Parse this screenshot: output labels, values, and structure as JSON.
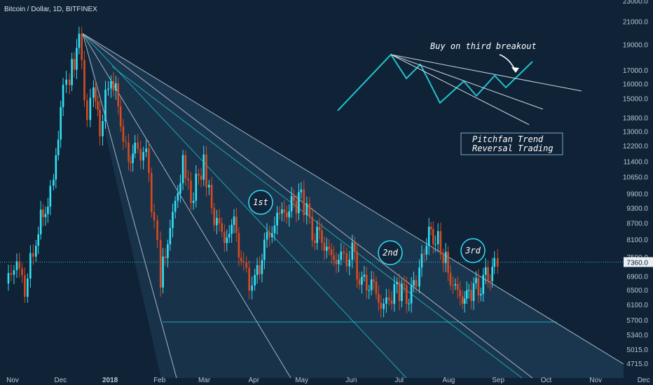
{
  "chart_data": {
    "type": "candlestick",
    "title": "Bitcoin / Dollar, 1D, BITFINEX",
    "price_scale": "log",
    "ylim": [
      4600,
      23000
    ],
    "y_ticks": [
      "23000.0",
      "21000.0",
      "19000.0",
      "17000.0",
      "16000.0",
      "15000.0",
      "13800.0",
      "13000.0",
      "12200.0",
      "11400.0",
      "10650.0",
      "9900.0",
      "9300.0",
      "8700.0",
      "8100.0",
      "7500.0",
      "6900.0",
      "6500.0",
      "6100.0",
      "5700.0",
      "5340.0",
      "5015.0",
      "4715.0"
    ],
    "x_ticks": [
      "Nov",
      "Dec",
      "2018",
      "Feb",
      "Mar",
      "Apr",
      "May",
      "Jun",
      "Jul",
      "Aug",
      "Sep",
      "Oct",
      "Nov",
      "Dec"
    ],
    "last_price": "7360.0",
    "close_series": [
      {
        "date": "2017-11-01",
        "close": 6700
      },
      {
        "date": "2017-11-08",
        "close": 7400
      },
      {
        "date": "2017-11-13",
        "close": 6500
      },
      {
        "date": "2017-11-20",
        "close": 8200
      },
      {
        "date": "2017-11-26",
        "close": 9400
      },
      {
        "date": "2017-11-29",
        "close": 9900
      },
      {
        "date": "2017-12-01",
        "close": 10800
      },
      {
        "date": "2017-12-07",
        "close": 15500
      },
      {
        "date": "2017-12-11",
        "close": 16800
      },
      {
        "date": "2017-12-17",
        "close": 19300
      },
      {
        "date": "2017-12-22",
        "close": 13800
      },
      {
        "date": "2017-12-26",
        "close": 15800
      },
      {
        "date": "2017-12-30",
        "close": 13000
      },
      {
        "date": "2018-01-06",
        "close": 17000
      },
      {
        "date": "2018-01-12",
        "close": 13800
      },
      {
        "date": "2018-01-17",
        "close": 11300
      },
      {
        "date": "2018-01-21",
        "close": 12200
      },
      {
        "date": "2018-01-28",
        "close": 11600
      },
      {
        "date": "2018-02-02",
        "close": 8800
      },
      {
        "date": "2018-02-06",
        "close": 6900
      },
      {
        "date": "2018-02-12",
        "close": 8500
      },
      {
        "date": "2018-02-20",
        "close": 11300
      },
      {
        "date": "2018-02-25",
        "close": 9600
      },
      {
        "date": "2018-03-05",
        "close": 11500
      },
      {
        "date": "2018-03-10",
        "close": 9200
      },
      {
        "date": "2018-03-18",
        "close": 8200
      },
      {
        "date": "2018-03-24",
        "close": 8700
      },
      {
        "date": "2018-03-30",
        "close": 7000
      },
      {
        "date": "2018-04-06",
        "close": 6630
      },
      {
        "date": "2018-04-12",
        "close": 7900
      },
      {
        "date": "2018-04-20",
        "close": 8900
      },
      {
        "date": "2018-04-26",
        "close": 9300
      },
      {
        "date": "2018-05-05",
        "close": 9800
      },
      {
        "date": "2018-05-12",
        "close": 8500
      },
      {
        "date": "2018-05-18",
        "close": 8200
      },
      {
        "date": "2018-05-24",
        "close": 7500
      },
      {
        "date": "2018-05-30",
        "close": 7400
      },
      {
        "date": "2018-06-06",
        "close": 7600
      },
      {
        "date": "2018-06-12",
        "close": 6600
      },
      {
        "date": "2018-06-18",
        "close": 6700
      },
      {
        "date": "2018-06-24",
        "close": 6100
      },
      {
        "date": "2018-06-29",
        "close": 6200
      },
      {
        "date": "2018-07-04",
        "close": 6600
      },
      {
        "date": "2018-07-10",
        "close": 6400
      },
      {
        "date": "2018-07-16",
        "close": 6700
      },
      {
        "date": "2018-07-18",
        "close": 7400
      },
      {
        "date": "2018-07-24",
        "close": 8200
      },
      {
        "date": "2018-07-28",
        "close": 8200
      },
      {
        "date": "2018-08-02",
        "close": 7600
      },
      {
        "date": "2018-08-08",
        "close": 6600
      },
      {
        "date": "2018-08-14",
        "close": 6300
      },
      {
        "date": "2018-08-18",
        "close": 6400
      },
      {
        "date": "2018-08-24",
        "close": 6700
      },
      {
        "date": "2018-08-30",
        "close": 7000
      },
      {
        "date": "2018-09-03",
        "close": 7300
      },
      {
        "date": "2018-09-05",
        "close": 7360
      }
    ],
    "annotations": {
      "buy_note": "Buy on third breakout",
      "box_line1": "Pitchfan Trend",
      "box_line2": "Reversal Trading",
      "b1": "1st",
      "b2": "2nd",
      "b3": "3rd"
    },
    "colors": {
      "background": "#0f2236",
      "up": "#33e0f5",
      "down": "#d94a1f",
      "fan": "#c9d6e3",
      "teal": "#21c2cc",
      "box": "#7fa8c8"
    }
  }
}
